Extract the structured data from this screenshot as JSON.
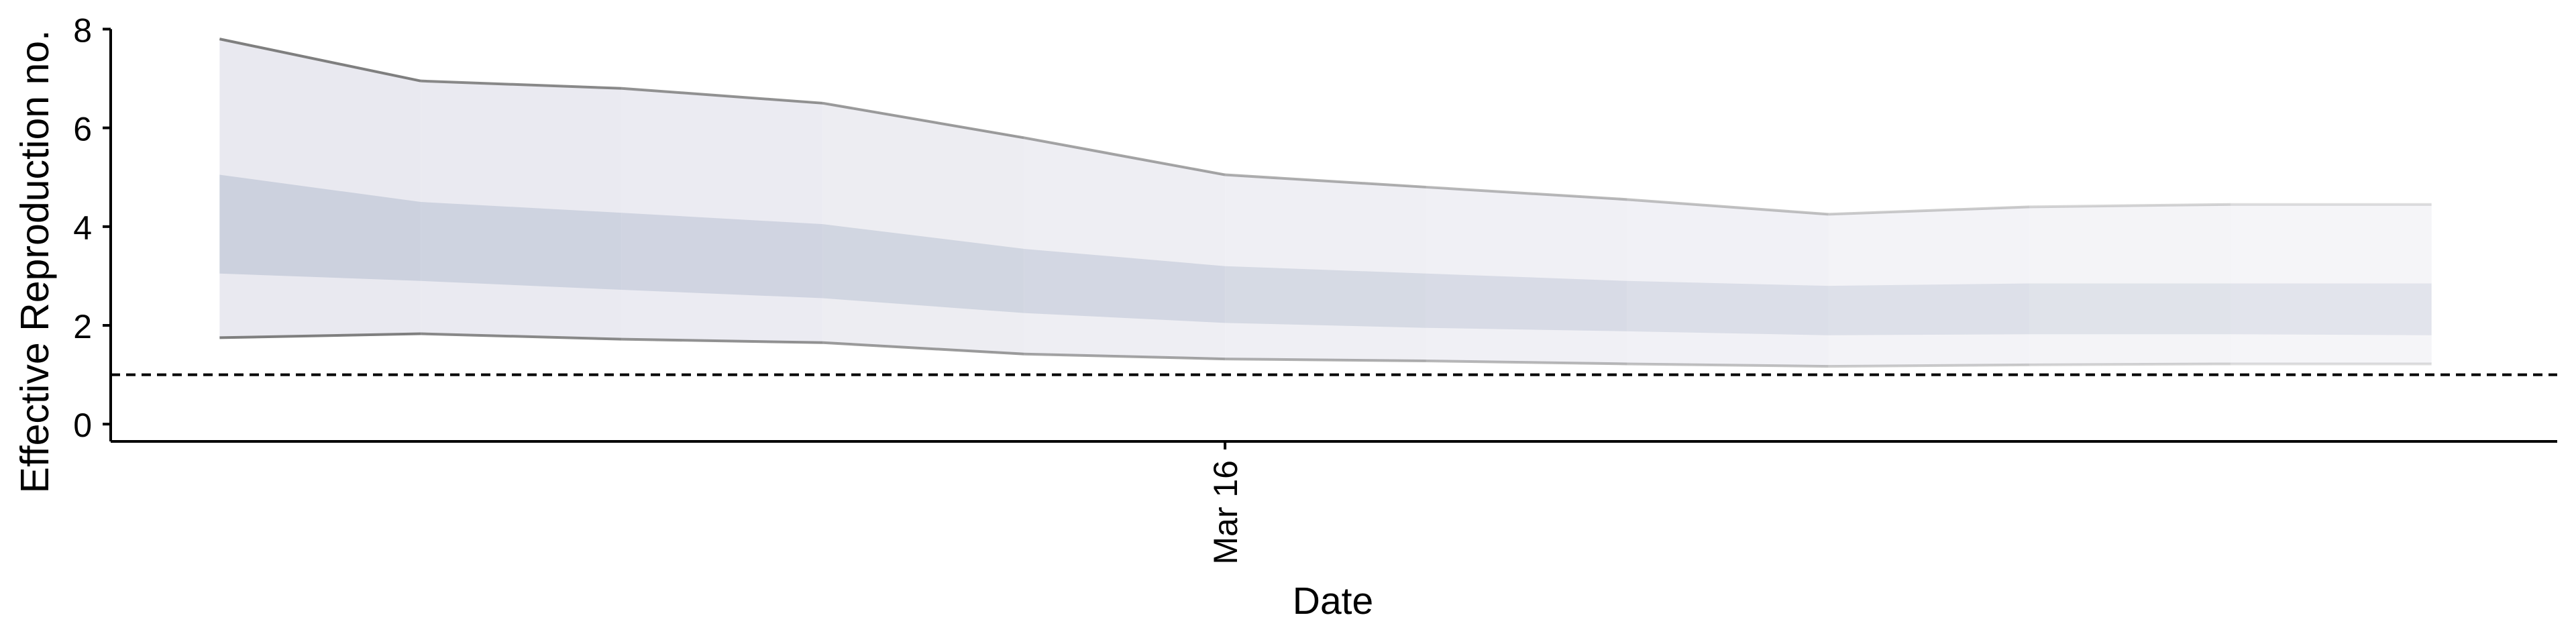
{
  "chart_data": {
    "type": "area",
    "title": "",
    "xlabel": "Date",
    "ylabel": "Effective Reproduction no.",
    "x_type": "date",
    "x": [
      "2020-03-11",
      "2020-03-12",
      "2020-03-13",
      "2020-03-14",
      "2020-03-15",
      "2020-03-16",
      "2020-03-17",
      "2020-03-18",
      "2020-03-19",
      "2020-03-20",
      "2020-03-21",
      "2020-03-22"
    ],
    "xlim": [
      "2020-03-10T11:00",
      "2020-03-22T15:00"
    ],
    "x_ticks": [
      {
        "value": "2020-03-16",
        "label": "Mar 16"
      }
    ],
    "ylim": [
      -0.35,
      8.25
    ],
    "y_ticks": [
      0,
      2,
      4,
      6,
      8
    ],
    "grid": false,
    "legend": "none",
    "series": [
      {
        "name": "",
        "role": "outer-upper",
        "values": [
          7.8,
          6.95,
          6.8,
          6.5,
          5.8,
          5.05,
          4.8,
          4.55,
          4.25,
          4.4,
          4.45,
          4.45
        ]
      },
      {
        "name": "",
        "role": "inner-upper",
        "values": [
          5.05,
          4.5,
          4.28,
          4.05,
          3.55,
          3.2,
          3.05,
          2.9,
          2.8,
          2.85,
          2.85,
          2.85
        ]
      },
      {
        "name": "",
        "role": "inner-lower",
        "values": [
          3.05,
          2.9,
          2.72,
          2.55,
          2.25,
          2.05,
          1.95,
          1.88,
          1.8,
          1.82,
          1.82,
          1.8
        ]
      },
      {
        "name": "",
        "role": "outer-lower",
        "values": [
          1.75,
          1.83,
          1.72,
          1.65,
          1.42,
          1.32,
          1.28,
          1.22,
          1.17,
          1.2,
          1.22,
          1.22
        ]
      }
    ],
    "reference_line": {
      "y": 1,
      "style": "dashed"
    },
    "colors": {
      "outer_band": "#e9e9f0",
      "inner_band": "#ccd1de",
      "bound_line": "#7f7f7f",
      "reference_line": "#000000",
      "axis": "#000000"
    }
  }
}
